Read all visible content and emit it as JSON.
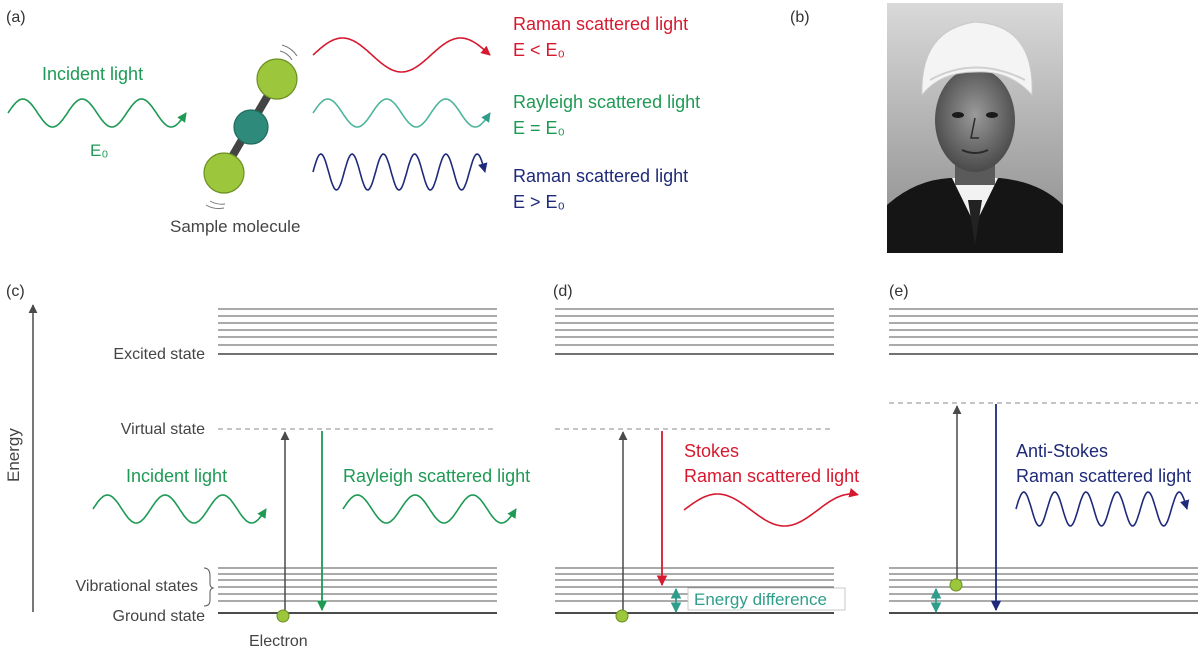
{
  "panel_a": {
    "label": "(a)",
    "incident_label": "Incident light",
    "incident_energy": "E₀",
    "molecule_label": "Sample molecule",
    "outputs": [
      {
        "line1": "Raman scattered light",
        "line2": "E < E₀",
        "color": "#d7192f"
      },
      {
        "line1": "Rayleigh scattered light",
        "line2": "E = E₀",
        "color": "#1e9a55"
      },
      {
        "line1": "Raman scattered light",
        "line2": "E > E₀",
        "color": "#1f2a7a"
      }
    ]
  },
  "panel_b": {
    "label": "(b)"
  },
  "panel_c": {
    "label": "(c)",
    "axis_label": "Energy",
    "excited_state": "Excited state",
    "virtual_state": "Virtual state",
    "vibrational_states": "Vibrational states",
    "ground_state": "Ground state",
    "electron": "Electron",
    "incident_light": "Incident light",
    "rayleigh_light": "Rayleigh scattered light"
  },
  "panel_d": {
    "label": "(d)",
    "stokes_line1": "Stokes",
    "stokes_line2": "Raman scattered light",
    "energy_difference": "Energy difference"
  },
  "panel_e": {
    "label": "(e)",
    "anti_line1": "Anti-Stokes",
    "anti_line2": "Raman scattered light"
  },
  "colors": {
    "green": "#1e9a55",
    "red": "#d7192f",
    "navy": "#1f2a7a",
    "teal": "#2e9e8a",
    "gray": "#4a4a4a",
    "molecule_green": "#9cc63b",
    "molecule_teal": "#2e8b7b"
  }
}
